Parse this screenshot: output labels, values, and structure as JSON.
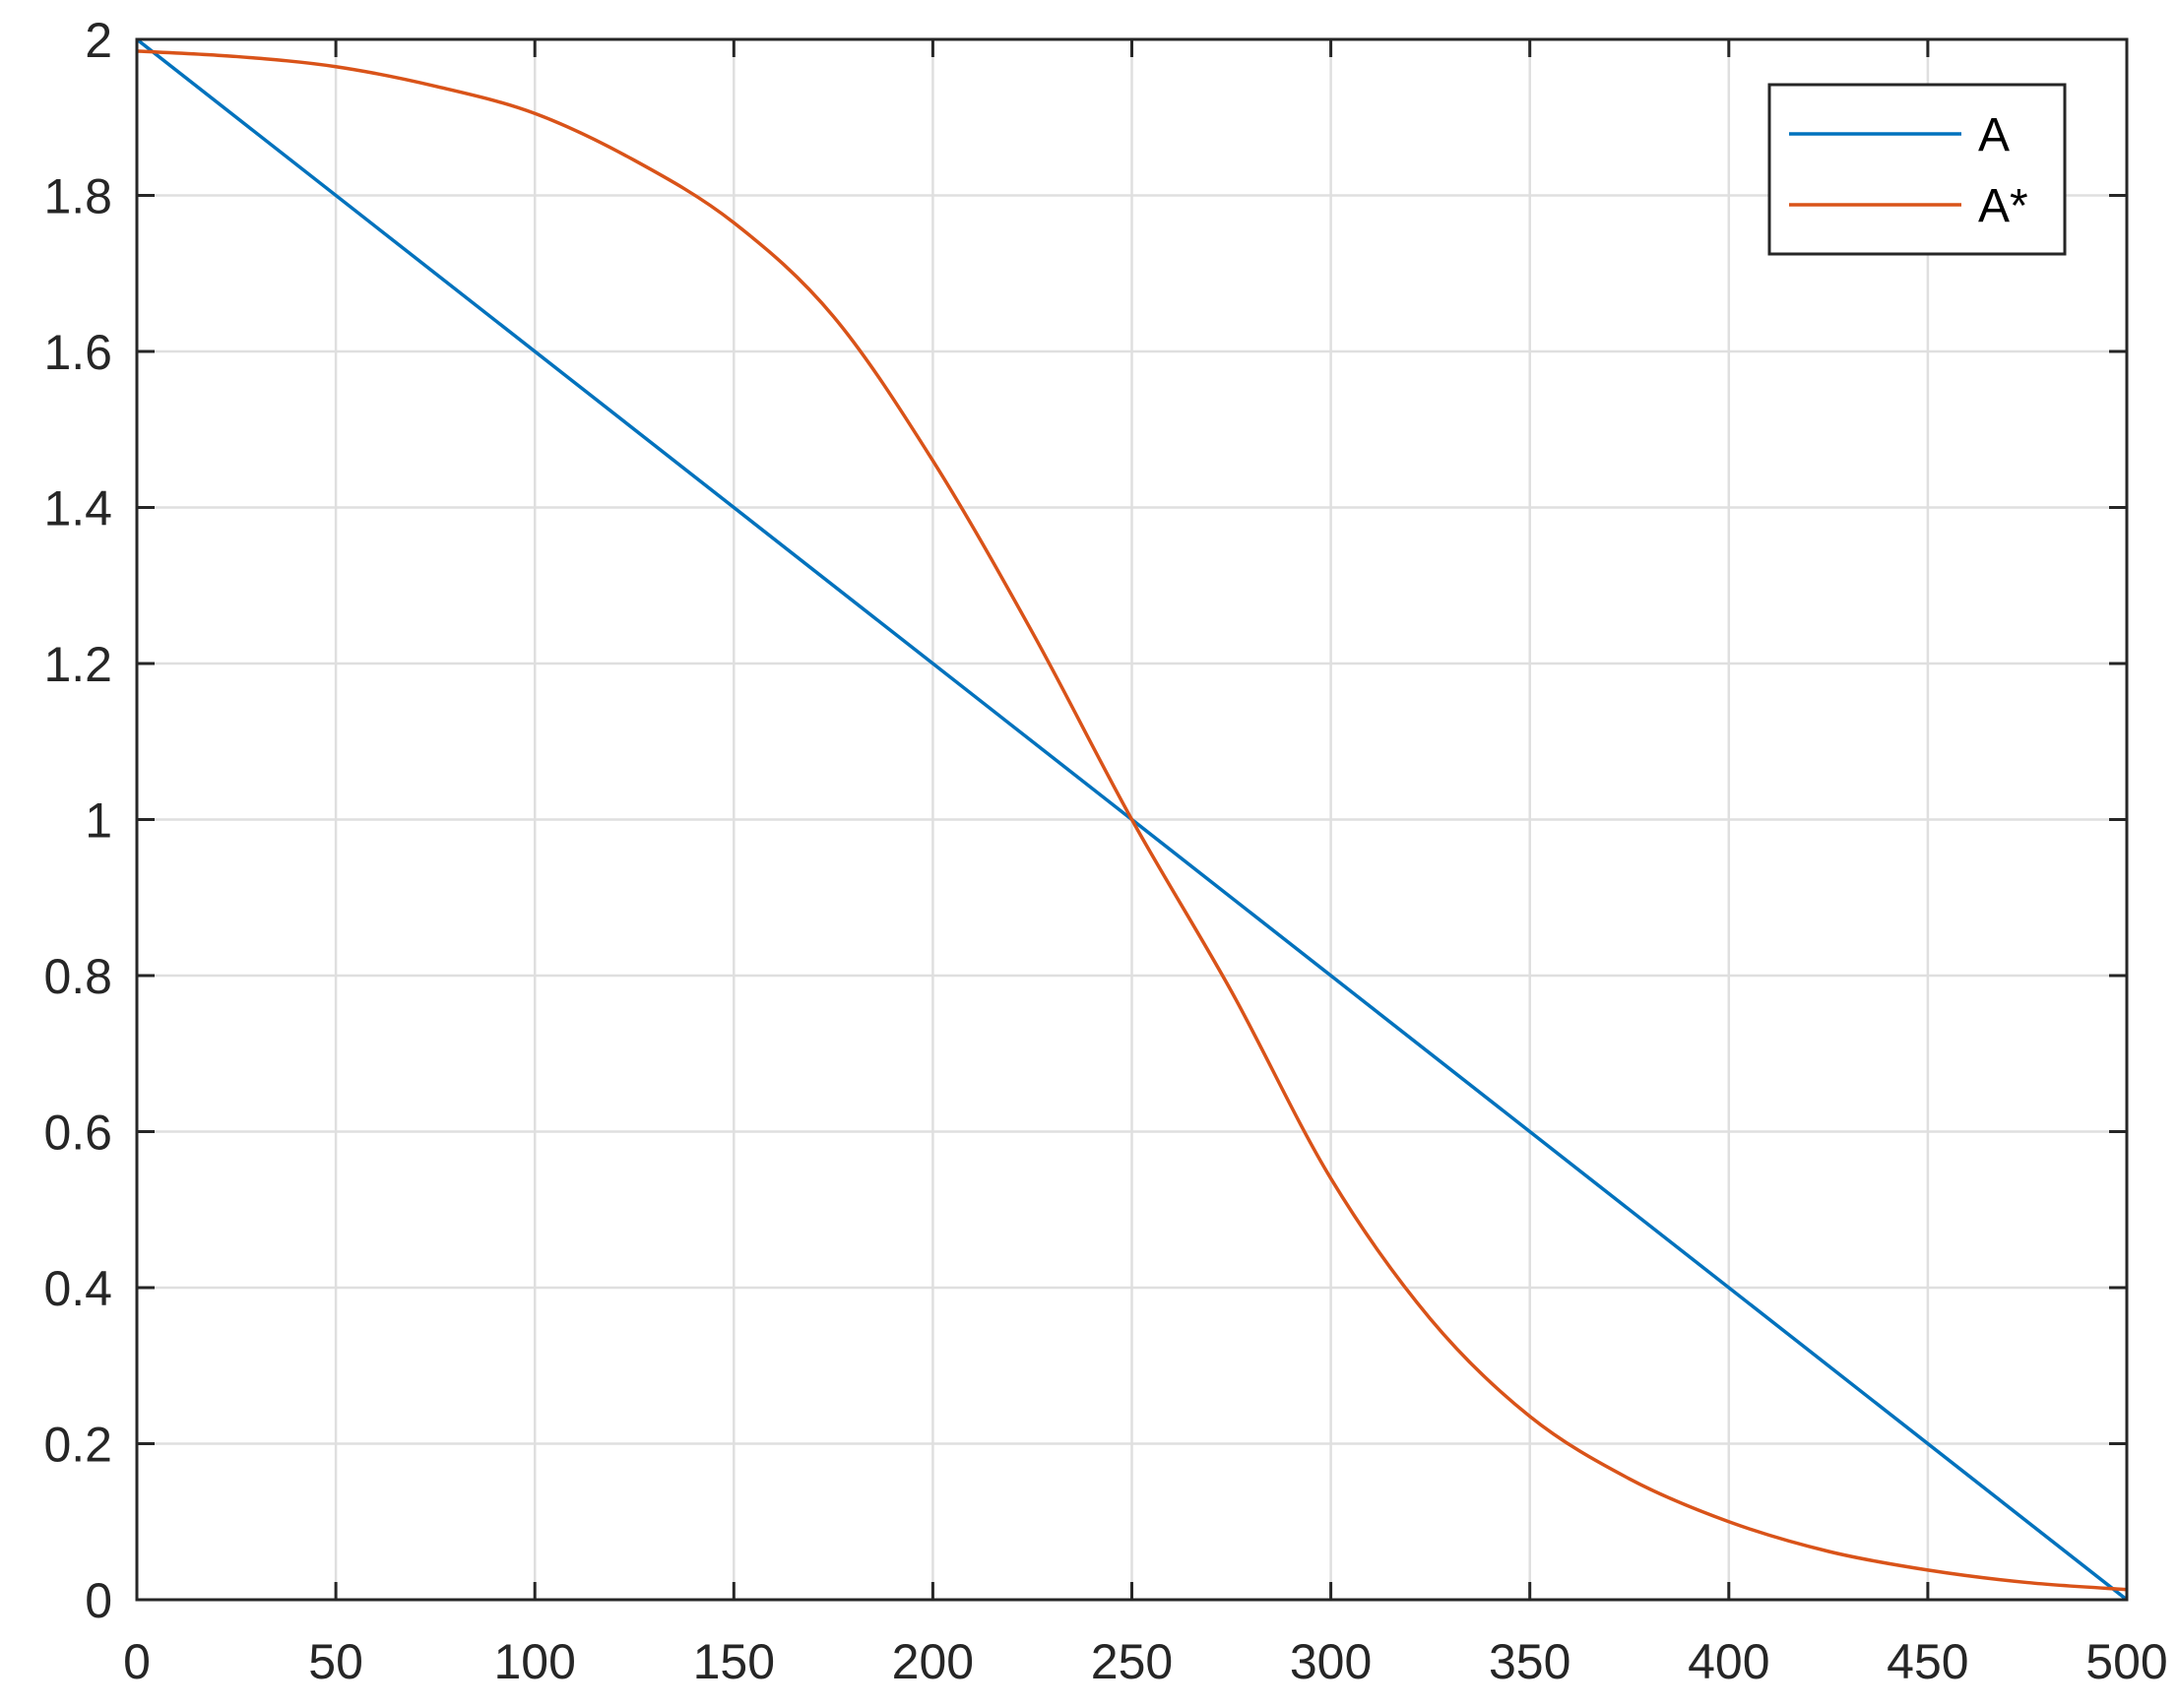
{
  "chart_data": {
    "type": "line",
    "title": "",
    "xlabel": "",
    "ylabel": "",
    "xlim": [
      0,
      500
    ],
    "ylim": [
      0,
      2
    ],
    "xticks": [
      0,
      50,
      100,
      150,
      200,
      250,
      300,
      350,
      400,
      450,
      500
    ],
    "yticks": [
      0,
      0.2,
      0.4,
      0.6,
      0.8,
      1,
      1.2,
      1.4,
      1.6,
      1.8,
      2
    ],
    "xtick_labels": [
      "0",
      "50",
      "100",
      "150",
      "200",
      "250",
      "300",
      "350",
      "400",
      "450",
      "500"
    ],
    "ytick_labels": [
      "0",
      "0.2",
      "0.4",
      "0.6",
      "0.8",
      "1",
      "1.2",
      "1.4",
      "1.6",
      "1.8",
      "2"
    ],
    "grid": true,
    "legend_position": "top-right",
    "series": [
      {
        "name": "A",
        "color": "#0072BD",
        "x": [
          0,
          500
        ],
        "y": [
          2,
          0
        ]
      },
      {
        "name": "A*",
        "color": "#D95319",
        "x": [
          0,
          25,
          50,
          75,
          100,
          125,
          150,
          175,
          200,
          225,
          250,
          275,
          300,
          325,
          350,
          375,
          400,
          425,
          450,
          475,
          500
        ],
        "y": [
          1.985,
          1.978,
          1.965,
          1.94,
          1.905,
          1.845,
          1.765,
          1.645,
          1.46,
          1.24,
          1.0,
          0.78,
          0.54,
          0.36,
          0.235,
          0.155,
          0.1,
          0.062,
          0.038,
          0.022,
          0.013
        ]
      }
    ]
  }
}
